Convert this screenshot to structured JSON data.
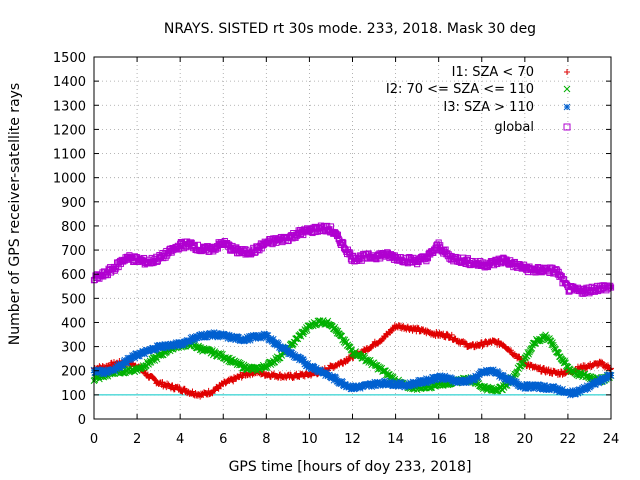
{
  "chart_data": {
    "type": "scatter",
    "title": "NRAYS. SISTED rt 30s mode. 233, 2018. Mask 30 deg",
    "xlabel": "GPS time [hours of doy 233, 2018]",
    "ylabel": "Number of GPS receiver-satellite rays",
    "xlim": [
      0,
      24
    ],
    "ylim": [
      0,
      1500
    ],
    "xticks": [
      "0",
      "2",
      "4",
      "6",
      "8",
      "10",
      "12",
      "14",
      "16",
      "18",
      "20",
      "22",
      "24"
    ],
    "yticks": [
      "0",
      "100",
      "200",
      "300",
      "400",
      "500",
      "600",
      "700",
      "800",
      "900",
      "1000",
      "1100",
      "1200",
      "1300",
      "1400",
      "1500"
    ],
    "grid": true,
    "legend_position": "top-right",
    "reference_line": {
      "y": 100,
      "color": "#00c8c8"
    },
    "series": [
      {
        "name": "I1: SZA < 70",
        "color": "#e00000",
        "marker": "plus",
        "x": [
          0,
          0.5,
          1,
          1.5,
          2,
          2.5,
          3,
          3.5,
          4,
          4.5,
          5,
          5.5,
          6,
          6.5,
          7,
          7.5,
          8,
          8.5,
          9,
          9.5,
          10,
          10.5,
          11,
          11.5,
          12,
          12.5,
          13,
          13.5,
          14,
          14.5,
          15,
          15.5,
          16,
          16.5,
          17,
          17.5,
          18,
          18.5,
          19,
          19.5,
          20,
          20.5,
          21,
          21.5,
          22,
          22.5,
          23,
          23.5,
          24
        ],
        "y": [
          210,
          215,
          230,
          235,
          220,
          180,
          150,
          135,
          125,
          110,
          100,
          115,
          145,
          165,
          185,
          195,
          185,
          180,
          175,
          180,
          185,
          195,
          215,
          235,
          260,
          280,
          310,
          340,
          385,
          380,
          370,
          360,
          350,
          345,
          320,
          300,
          310,
          320,
          310,
          270,
          230,
          210,
          200,
          190,
          195,
          210,
          220,
          230,
          210
        ]
      },
      {
        "name": "I2: 70 <= SZA <= 110",
        "color": "#00b000",
        "marker": "cross",
        "x": [
          0,
          0.5,
          1,
          1.5,
          2,
          2.5,
          3,
          3.5,
          4,
          4.5,
          5,
          5.5,
          6,
          6.5,
          7,
          7.5,
          8,
          8.5,
          9,
          9.5,
          10,
          10.5,
          11,
          11.5,
          12,
          12.5,
          13,
          13.5,
          14,
          14.5,
          15,
          15.5,
          16,
          16.5,
          17,
          17.5,
          18,
          18.5,
          19,
          19.5,
          20,
          20.5,
          21,
          21.5,
          22,
          22.5,
          23,
          23.5,
          24
        ],
        "y": [
          165,
          180,
          195,
          200,
          205,
          230,
          260,
          290,
          305,
          310,
          290,
          275,
          260,
          235,
          215,
          205,
          220,
          250,
          290,
          340,
          385,
          405,
          395,
          335,
          280,
          255,
          225,
          195,
          160,
          135,
          130,
          135,
          145,
          150,
          160,
          165,
          135,
          120,
          130,
          180,
          250,
          320,
          345,
          280,
          210,
          185,
          175,
          160,
          180
        ]
      },
      {
        "name": "I3: SZA > 110",
        "color": "#0060d0",
        "marker": "star",
        "x": [
          0,
          0.5,
          1,
          1.5,
          2,
          2.5,
          3,
          3.5,
          4,
          4.5,
          5,
          5.5,
          6,
          6.5,
          7,
          7.5,
          8,
          8.5,
          9,
          9.5,
          10,
          10.5,
          11,
          11.5,
          12,
          12.5,
          13,
          13.5,
          14,
          14.5,
          15,
          15.5,
          16,
          16.5,
          17,
          17.5,
          18,
          18.5,
          19,
          19.5,
          20,
          20.5,
          21,
          21.5,
          22,
          22.5,
          23,
          23.5,
          24
        ],
        "y": [
          200,
          195,
          210,
          240,
          265,
          280,
          300,
          305,
          310,
          330,
          345,
          350,
          345,
          335,
          330,
          340,
          345,
          310,
          280,
          250,
          220,
          200,
          175,
          150,
          130,
          135,
          145,
          150,
          145,
          140,
          150,
          160,
          175,
          165,
          155,
          160,
          190,
          200,
          175,
          150,
          135,
          135,
          130,
          125,
          105,
          115,
          135,
          160,
          180
        ]
      },
      {
        "name": "global",
        "color": "#b000d0",
        "marker": "square",
        "x": [
          0,
          0.5,
          1,
          1.5,
          2,
          2.5,
          3,
          3.5,
          4,
          4.5,
          5,
          5.5,
          6,
          6.5,
          7,
          7.5,
          8,
          8.5,
          9,
          9.5,
          10,
          10.5,
          11,
          11.5,
          12,
          12.5,
          13,
          13.5,
          14,
          14.5,
          15,
          15.5,
          16,
          16.5,
          17,
          17.5,
          18,
          18.5,
          19,
          19.5,
          20,
          20.5,
          21,
          21.5,
          22,
          22.5,
          23,
          23.5,
          24
        ],
        "y": [
          580,
          600,
          630,
          670,
          660,
          650,
          665,
          690,
          720,
          725,
          700,
          705,
          730,
          700,
          690,
          700,
          730,
          740,
          750,
          770,
          780,
          790,
          785,
          730,
          665,
          670,
          675,
          680,
          670,
          660,
          655,
          670,
          720,
          670,
          660,
          650,
          640,
          645,
          660,
          640,
          625,
          615,
          620,
          610,
          540,
          530,
          535,
          545,
          545
        ]
      }
    ]
  }
}
